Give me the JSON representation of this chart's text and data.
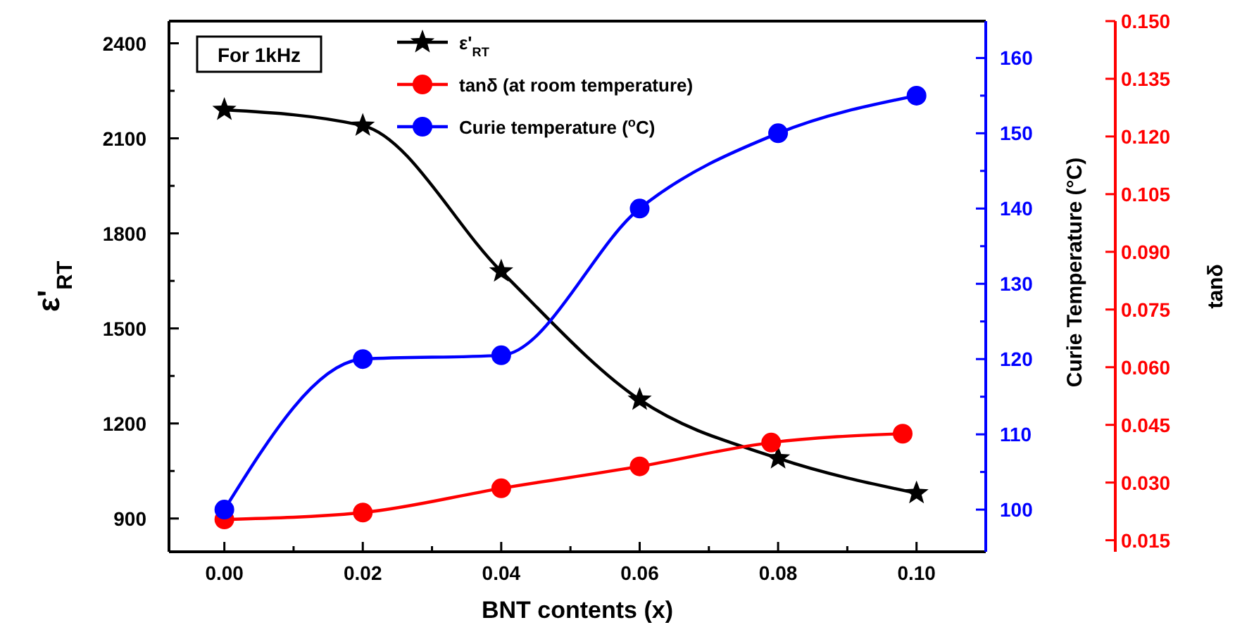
{
  "chart_data": {
    "type": "line",
    "xlabel": "BNT contents (x)",
    "ylabel": "ε'$_{RT}$",
    "y2label": "Curie Temperature (°C)",
    "y3label": "tanδ",
    "annotations": [
      "For 1kHz"
    ],
    "x": [
      0,
      0.02,
      0.04,
      0.06,
      0.08,
      0.1
    ],
    "xlim": [
      -0.008,
      0.11
    ],
    "xticks": [
      {
        "value": 0,
        "label": "0.00"
      },
      {
        "value": 0.01,
        "label": null
      },
      {
        "value": 0.02,
        "label": "0.02"
      },
      {
        "value": 0.03,
        "label": null
      },
      {
        "value": 0.04,
        "label": "0.04"
      },
      {
        "value": 0.05,
        "label": null
      },
      {
        "value": 0.06,
        "label": "0.06"
      },
      {
        "value": 0.07,
        "label": null
      },
      {
        "value": 0.08,
        "label": "0.08"
      },
      {
        "value": 0.09,
        "label": null
      },
      {
        "value": 0.1,
        "label": "0.10"
      }
    ],
    "ylim": [
      795,
      2470
    ],
    "yticks": [
      900,
      {
        "value": 1050,
        "label": null
      },
      1200,
      {
        "value": 1350,
        "label": null
      },
      1500,
      {
        "value": 1650,
        "label": null
      },
      1800,
      {
        "value": 1950,
        "label": null
      },
      2100,
      {
        "value": 2250,
        "label": null
      },
      2400
    ],
    "y2lim": [
      94.4,
      164.9
    ],
    "y2ticks": [
      100,
      {
        "value": 105,
        "label": null
      },
      110,
      {
        "value": 115,
        "label": null
      },
      120,
      {
        "value": 125,
        "label": null
      },
      130,
      {
        "value": 135,
        "label": null
      },
      140,
      {
        "value": 145,
        "label": null
      },
      150,
      {
        "value": 155,
        "label": null
      },
      160
    ],
    "y3lim": [
      0.012,
      0.15
    ],
    "y3ticks": [
      {
        "value": 0.015,
        "label": "0.015"
      },
      {
        "value": 0.03,
        "label": "0.030"
      },
      {
        "value": 0.045,
        "label": "0.045"
      },
      {
        "value": 0.06,
        "label": "0.060"
      },
      {
        "value": 0.075,
        "label": "0.075"
      },
      {
        "value": 0.09,
        "label": "0.090"
      },
      {
        "value": 0.105,
        "label": "0.105"
      },
      {
        "value": 0.12,
        "label": "0.120"
      },
      {
        "value": 0.135,
        "label": "0.135"
      },
      {
        "value": 0.15,
        "label": "0.150"
      }
    ],
    "legend": "top",
    "series": [
      {
        "name": "ε'$_{RT}$",
        "color": "#000000",
        "marker": "star",
        "axis": "y",
        "values": [
          2190,
          2140,
          1680,
          1275,
          1090,
          980
        ]
      },
      {
        "name": "tanδ  (at room temperature)",
        "color": "#ff0000",
        "marker": "circle",
        "axis": "y3",
        "x": [
          0,
          0.02,
          0.04,
          0.06,
          0.079,
          0.098
        ],
        "values": [
          0.0204,
          0.0222,
          0.0285,
          0.0342,
          0.0404,
          0.0427
        ]
      },
      {
        "name": "Curie temperature ($^{o}$C)",
        "color": "#0000ff",
        "marker": "circle",
        "axis": "y2",
        "values": [
          100,
          120,
          120.5,
          140,
          150,
          155
        ]
      }
    ]
  }
}
